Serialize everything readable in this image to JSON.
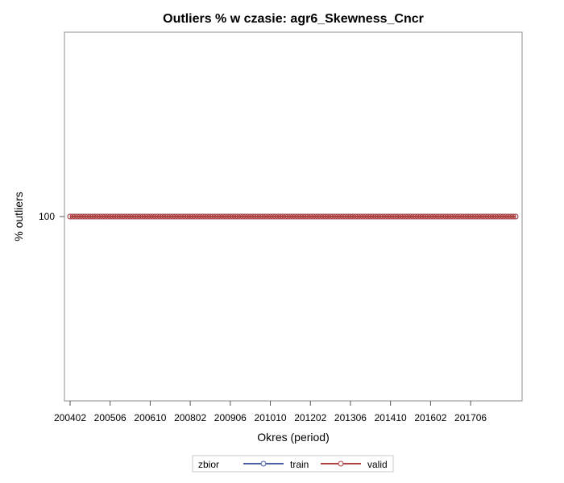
{
  "chart_data": {
    "type": "line",
    "title": "Outliers % w czasie: agr6_Skewness_Cncr",
    "xlabel": "Okres (period)",
    "ylabel": "% outliers",
    "x_ticks": [
      "200402",
      "200506",
      "200610",
      "200802",
      "200906",
      "201010",
      "201202",
      "201306",
      "201410",
      "201602",
      "201706"
    ],
    "y_ticks": [
      100
    ],
    "x_range": [
      "200402",
      "201812"
    ],
    "ylim": [
      0,
      200
    ],
    "grid": false,
    "legend": {
      "title": "zbior",
      "position": "bottom"
    },
    "series": [
      {
        "name": "train",
        "color": "#4a5fa8",
        "marker": "circle",
        "y": 100
      },
      {
        "name": "valid",
        "color": "#b0413e",
        "marker": "circle",
        "y": 100
      }
    ]
  }
}
